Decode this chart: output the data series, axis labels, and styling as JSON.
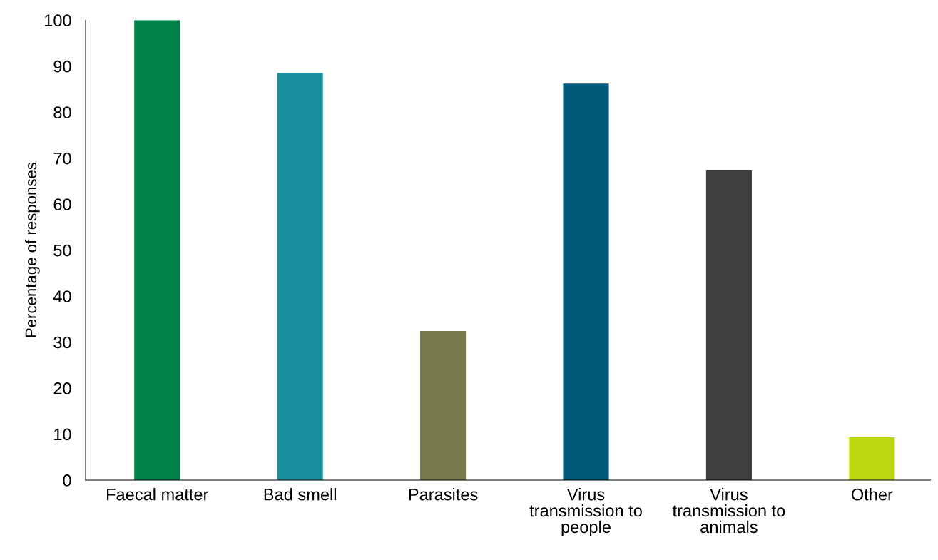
{
  "chart_data": {
    "type": "bar",
    "ylabel": "Percentage of responses",
    "categories": [
      "Faecal matter",
      "Bad smell",
      "Parasites",
      "Virus\ntransmission to\npeople",
      "Virus\ntransmission to\nanimals",
      "Other"
    ],
    "values": [
      100,
      88.5,
      32.4,
      86.2,
      67.4,
      9.3
    ],
    "colors": [
      "#00844a",
      "#1a8f9e",
      "#767a4d",
      "#005b7a",
      "#404040",
      "#bdd70f"
    ],
    "ylim": [
      0,
      100
    ],
    "yticks": [
      0,
      10,
      20,
      30,
      40,
      50,
      60,
      70,
      80,
      90,
      100
    ],
    "grid": false,
    "legend": false
  }
}
